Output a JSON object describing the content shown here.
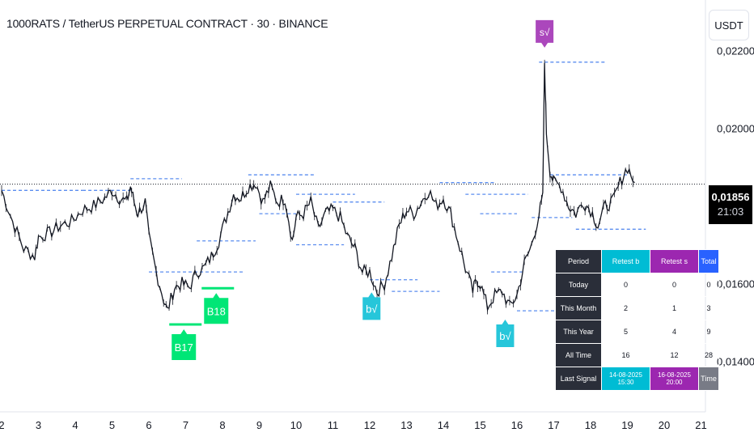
{
  "header": {
    "title": "1000RATS / TetherUS PERPETUAL CONTRACT · 30 · BINANCE"
  },
  "currency_button": "USDT",
  "last_price": {
    "price": "0,01856",
    "countdown": "21:03"
  },
  "colors": {
    "buy": "#00e676",
    "retest_b": "#26c6da",
    "retest_s": "#ab47bc",
    "level_line": "#5b8def"
  },
  "signals": [
    {
      "label": "B17",
      "day": 6.95,
      "price": 0.01495,
      "kind": "buy"
    },
    {
      "label": "B18",
      "day": 7.83,
      "price": 0.01588,
      "kind": "buy"
    },
    {
      "label": "b√",
      "day": 12.05,
      "price": 0.0159,
      "kind": "retest_b"
    },
    {
      "label": "b√",
      "day": 15.68,
      "price": 0.0152,
      "kind": "retest_b"
    },
    {
      "label": "s√",
      "day": 16.75,
      "price": 0.0217,
      "kind": "retest_s"
    }
  ],
  "stats_table": {
    "headers": [
      "Period",
      "Retest b",
      "Retest s",
      "Total"
    ],
    "rows": [
      [
        "Today",
        "0",
        "0",
        "0"
      ],
      [
        "This Month",
        "2",
        "1",
        "3"
      ],
      [
        "This Year",
        "5",
        "4",
        "9"
      ],
      [
        "All Time",
        "16",
        "12",
        "28"
      ]
    ],
    "last_signal": [
      "Last Signal",
      "14-08-2025 15:30",
      "16-08-2025 20:00",
      "Time"
    ]
  },
  "chart_data": {
    "type": "line",
    "title": "1000RATS / TetherUS PERPETUAL CONTRACT · 30 · BINANCE",
    "xlabel": "",
    "ylabel": "",
    "x_ticks": [
      "2",
      "3",
      "4",
      "5",
      "6",
      "7",
      "8",
      "9",
      "10",
      "11",
      "12",
      "13",
      "14",
      "15",
      "16",
      "17",
      "18",
      "19",
      "20",
      "21"
    ],
    "y_ticks": [
      "0,02200",
      "0,02000",
      "0,01600",
      "0,01400"
    ],
    "y_tick_values": [
      0.022,
      0.02,
      0.016,
      0.014
    ],
    "xlim": [
      2,
      21
    ],
    "ylim": [
      0.0127,
      0.0233
    ],
    "last_value": 0.01856,
    "series": [
      {
        "x": [
          2.0,
          2.3,
          2.6,
          2.9,
          3.0,
          3.3,
          3.6,
          3.9,
          4.2,
          4.5,
          4.8,
          5.0,
          5.2,
          5.4,
          5.5,
          5.6,
          5.7,
          5.9,
          6.0,
          6.2,
          6.4,
          6.5,
          6.7,
          6.9,
          7.1,
          7.3,
          7.5,
          7.7,
          7.9,
          8.1,
          8.3,
          8.5,
          8.7,
          8.9,
          9.1,
          9.3,
          9.5,
          9.7,
          9.9,
          10.0,
          10.2,
          10.4,
          10.6,
          10.8,
          11.0,
          11.2,
          11.4,
          11.6,
          11.8,
          12.0,
          12.2,
          12.4,
          12.6,
          12.8,
          13.0,
          13.2,
          13.4,
          13.6,
          13.8,
          14.0,
          14.2,
          14.4,
          14.6,
          14.8,
          14.9,
          15.0,
          15.2,
          15.4,
          15.6,
          15.8,
          16.0,
          16.2,
          16.4,
          16.6,
          16.7,
          16.75,
          16.8,
          16.9,
          17.0,
          17.2,
          17.4,
          17.6,
          17.8,
          18.0,
          18.2,
          18.4,
          18.6,
          18.8,
          19.0,
          19.2
        ],
        "values": [
          0.0184,
          0.0176,
          0.0169,
          0.0167,
          0.0172,
          0.0173,
          0.0175,
          0.0176,
          0.0179,
          0.018,
          0.0182,
          0.0184,
          0.0182,
          0.0181,
          0.0185,
          0.0181,
          0.0178,
          0.0181,
          0.0172,
          0.0163,
          0.0156,
          0.0153,
          0.0159,
          0.016,
          0.0159,
          0.0163,
          0.0164,
          0.0167,
          0.0171,
          0.0177,
          0.0183,
          0.0182,
          0.0185,
          0.0186,
          0.0181,
          0.0185,
          0.0181,
          0.0182,
          0.0171,
          0.0177,
          0.0178,
          0.0181,
          0.0174,
          0.0178,
          0.0179,
          0.0177,
          0.0172,
          0.0169,
          0.0163,
          0.0163,
          0.0158,
          0.016,
          0.0167,
          0.0175,
          0.0179,
          0.0178,
          0.0181,
          0.0184,
          0.018,
          0.0182,
          0.0178,
          0.0171,
          0.0164,
          0.0158,
          0.0161,
          0.016,
          0.0154,
          0.0157,
          0.0158,
          0.0154,
          0.0157,
          0.0165,
          0.017,
          0.0178,
          0.0182,
          0.0217,
          0.0199,
          0.0189,
          0.0186,
          0.0185,
          0.018,
          0.0178,
          0.0181,
          0.0179,
          0.0175,
          0.018,
          0.0181,
          0.0186,
          0.019,
          0.0186
        ]
      }
    ]
  }
}
